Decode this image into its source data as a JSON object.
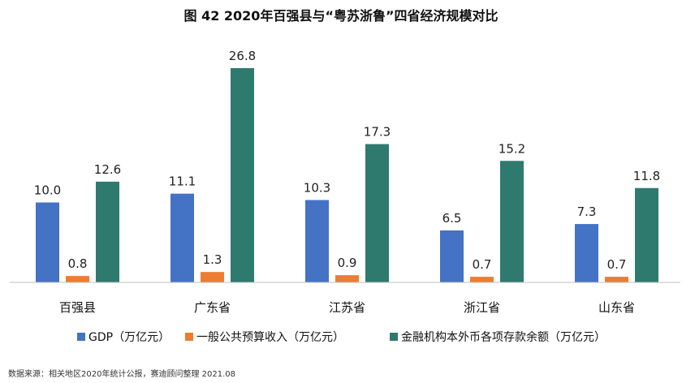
{
  "chart_data": {
    "type": "bar",
    "title": "图 42  2020年百强县与“粤苏浙鲁”四省经济规模对比",
    "categories": [
      "百强县",
      "广东省",
      "江苏省",
      "浙江省",
      "山东省"
    ],
    "series": [
      {
        "name": "GDP（万亿元）",
        "color": "#4472C4",
        "values": [
          10.0,
          11.1,
          10.3,
          6.5,
          7.3
        ]
      },
      {
        "name": "一般公共预算收入（万亿元）",
        "color": "#ED7D31",
        "values": [
          0.8,
          1.3,
          0.9,
          0.7,
          0.7
        ]
      },
      {
        "name": "金融机构本外币各项存款余额（万亿元）",
        "color": "#2E7A6E",
        "values": [
          12.6,
          26.8,
          17.3,
          15.2,
          11.8
        ]
      }
    ],
    "ylim": [
      0,
      28
    ],
    "grid": false,
    "legend_position": "bottom"
  },
  "source": "数据来源：相关地区2020年统计公报，赛迪顾问整理  2021.08"
}
